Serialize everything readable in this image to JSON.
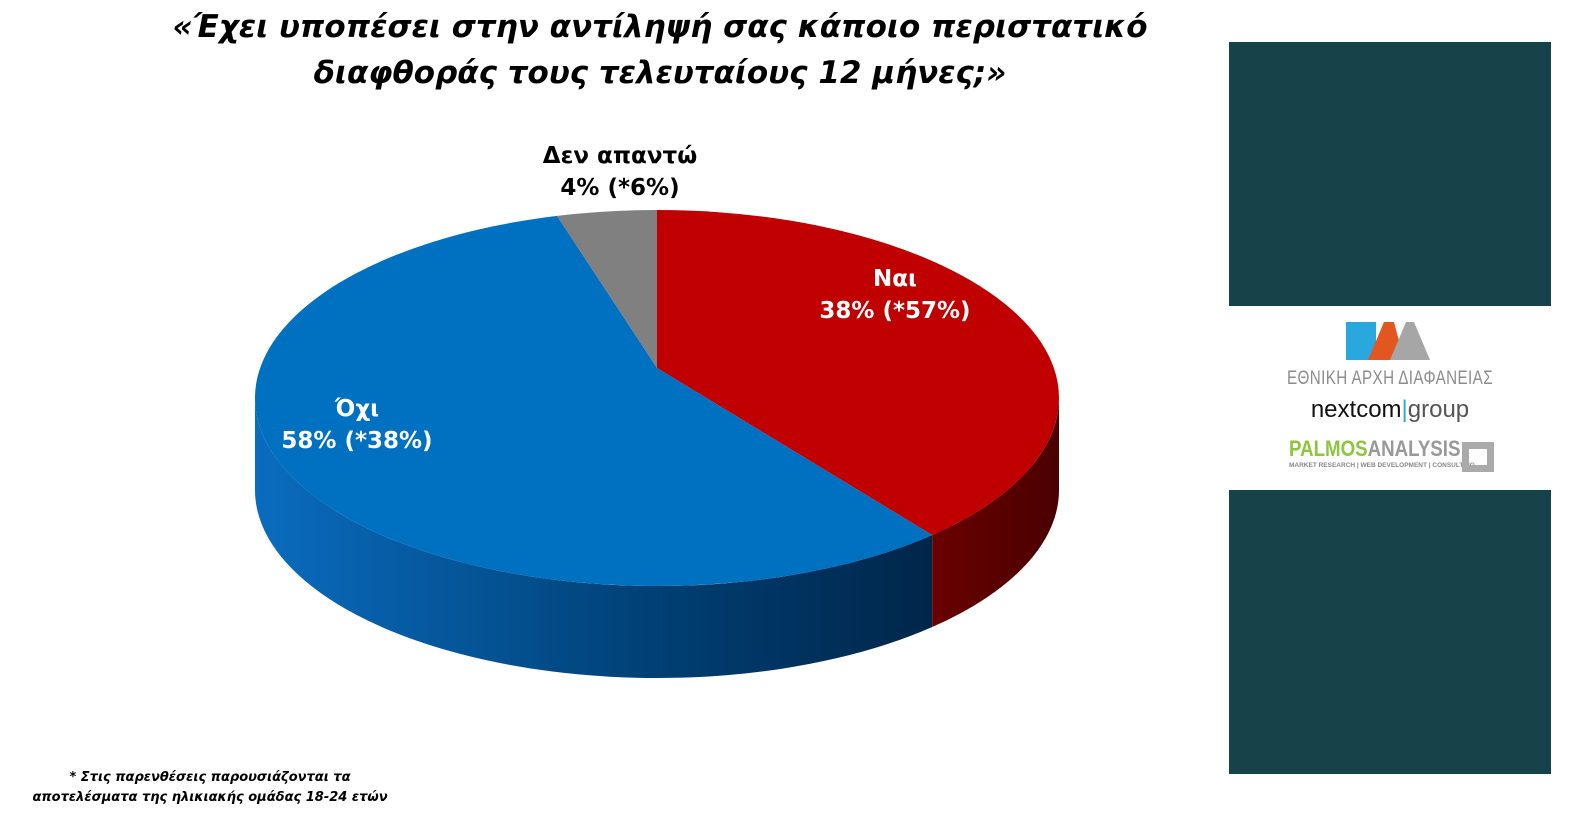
{
  "chart_data": {
    "type": "pie",
    "title": "«Έχει υποπέσει στην αντίληψή σας κάποιο περιστατικό διαφθοράς τους τελευταίους 12 μήνες;»",
    "title_lines": [
      "«Έχει υποπέσει στην αντίληψή σας κάποιο περιστατικό",
      "διαφθοράς τους τελευταίους 12 μήνες;»"
    ],
    "three_d": true,
    "slices": [
      {
        "label": "Ναι",
        "value": 38,
        "value_18_24": 57,
        "value_text": "38% (*57%)",
        "color": "#c00000"
      },
      {
        "label": "Όχι",
        "value": 58,
        "value_18_24": 38,
        "value_text": "58% (*38%)",
        "color": "#0070c0"
      },
      {
        "label": "Δεν απαντώ",
        "value": 4,
        "value_18_24": 6,
        "value_text": "4% (*6%)",
        "color": "#808080"
      }
    ],
    "footnote": [
      "* Στις παρενθέσεις παρουσιάζονται τα",
      "αποτελέσματα της ηλικιακής ομάδας 18-24 ετών"
    ]
  },
  "branding": {
    "eaa_text": "ΕΘΝΙΚΗ ΑΡΧΗ ΔΙΑΦΑΝΕΙΑΣ",
    "nextcom_a": "nextcom",
    "nextcom_sep": "|",
    "nextcom_b": "group",
    "palmos_a": "PALMOS",
    "palmos_b": "ANALYSIS",
    "palmos_sub": "MARKET RESEARCH | WEB DEVELOPMENT | CONSULTING",
    "panel_color": "#16434a"
  }
}
